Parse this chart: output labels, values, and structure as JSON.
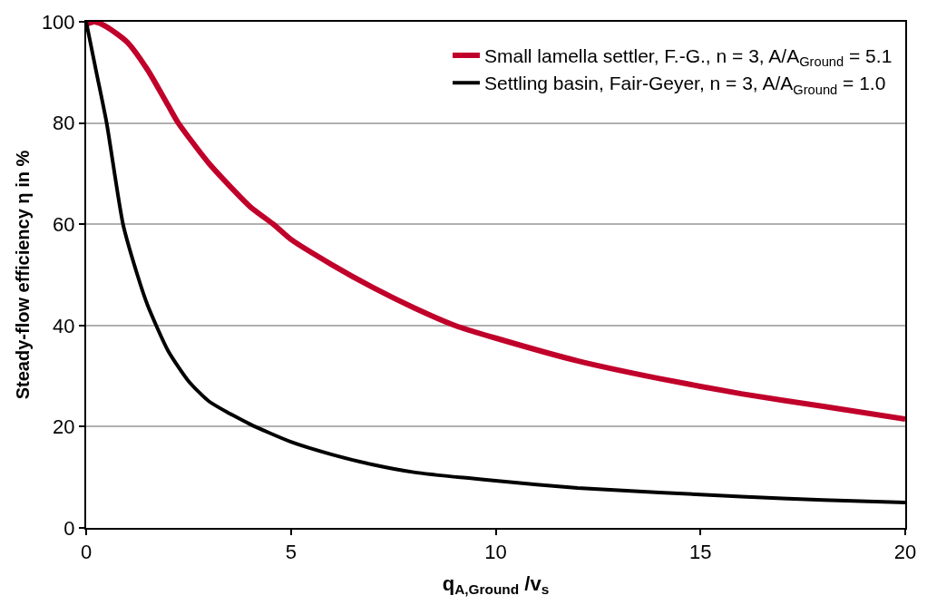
{
  "chart_data": {
    "type": "line",
    "xlabel": "q$_{A,Ground}$ /v$_{s}$",
    "ylabel": "Steady-flow efficiency η in %",
    "xlim": [
      0,
      20
    ],
    "xticks": [
      0,
      5,
      10,
      15,
      20
    ],
    "ylim": [
      0,
      100
    ],
    "yticks": [
      0,
      20,
      40,
      60,
      80,
      100
    ],
    "grid": "y",
    "legend": "top right",
    "marker": "none",
    "line_style": "solid",
    "series": [
      {
        "name": "Small lamella settler, F.-G., n = 3, A/A$_{Ground}$ = 5.1",
        "color": "#c0002a",
        "x": [
          0,
          0.2,
          0.5,
          1,
          1.5,
          2,
          2.25,
          3,
          4,
          4.57,
          5,
          6,
          7,
          8,
          9,
          10,
          12,
          14,
          16,
          18,
          20
        ],
        "values": [
          99.5,
          100,
          99,
          96,
          90.5,
          83.5,
          80,
          72,
          63.5,
          60,
          57,
          52,
          47.5,
          43.5,
          40,
          37.5,
          33,
          29.5,
          26.5,
          24,
          21.5
        ]
      },
      {
        "name": "Settling basin, Fair-Geyer, n = 3, A/A$_{Ground}$ = 1.0",
        "color": "#000000",
        "x": [
          0,
          0.25,
          0.5,
          0.9,
          1.25,
          1.5,
          2,
          2.5,
          3,
          4,
          5,
          6,
          7,
          8,
          10,
          12,
          14,
          16,
          18,
          20
        ],
        "values": [
          100,
          90,
          80,
          60,
          50,
          44,
          35,
          29,
          25,
          20.5,
          17,
          14.5,
          12.5,
          11,
          9.3,
          7.9,
          7,
          6.2,
          5.5,
          5
        ]
      }
    ]
  }
}
